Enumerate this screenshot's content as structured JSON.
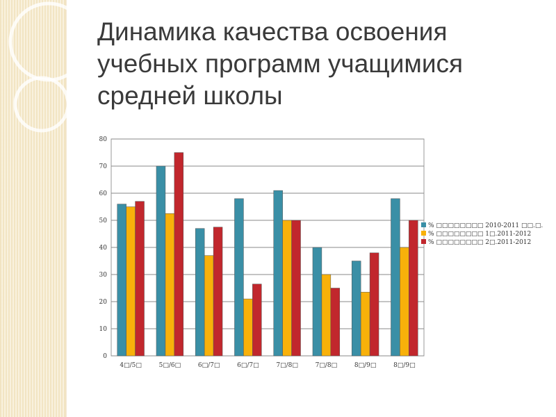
{
  "chart_data": {
    "type": "bar",
    "title_lines": [
      "Динамика качества освоения",
      "учебных программ учащимися",
      "средней  школы"
    ],
    "categories": [
      "4□/5□",
      "5□/6□",
      "6□/7□",
      "6□/7□",
      "7□/8□",
      "7□/8□",
      "8□/9□",
      "8□/9□"
    ],
    "series": [
      {
        "name": "% □□□□□□□□ 2010-2011 □□.□.",
        "color": "#3a8fa6",
        "values": [
          56,
          70,
          47,
          58,
          61,
          40,
          35,
          58
        ]
      },
      {
        "name": "% □□□□□□□□ 1□.2011-2012",
        "color": "#f8b10a",
        "values": [
          55,
          52.5,
          37,
          21,
          50,
          30,
          23.5,
          40
        ]
      },
      {
        "name": "% □□□□□□□□ 2□.2011-2012",
        "color": "#c1272d",
        "values": [
          57,
          75,
          47.5,
          26.5,
          50,
          25,
          38,
          50
        ]
      }
    ],
    "ylim": [
      0,
      80
    ],
    "yticks": [
      0,
      10,
      20,
      30,
      40,
      50,
      60,
      70,
      80
    ],
    "grid": true,
    "legend": "right"
  }
}
